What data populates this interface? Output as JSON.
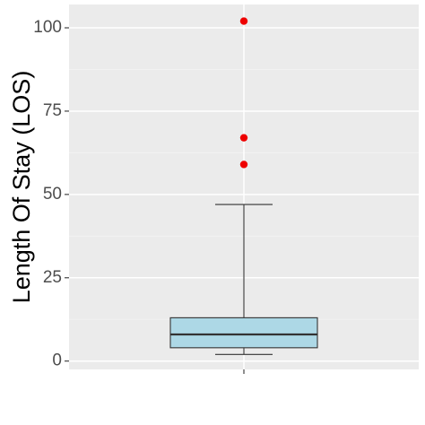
{
  "chart_data": {
    "type": "box",
    "title": "",
    "xlabel": "",
    "ylabel": "Length Of Stay (LOS)",
    "ylim": [
      -2.5,
      107
    ],
    "yticks": [
      0,
      25,
      50,
      75,
      100
    ],
    "grid": true,
    "legend": "none",
    "box": {
      "whisker_low": 2,
      "q1": 4,
      "median": 8,
      "q3": 13,
      "whisker_high": 47,
      "outliers": [
        59,
        67,
        102
      ]
    },
    "colors": {
      "panel": "#ebebeb",
      "grid_major": "#ffffff",
      "grid_minor": "#f4f4f4",
      "box_fill": "#add8e6",
      "box_stroke": "#333333",
      "median": "#333333",
      "outlier": "#ee0000",
      "tick": "#333333"
    }
  }
}
